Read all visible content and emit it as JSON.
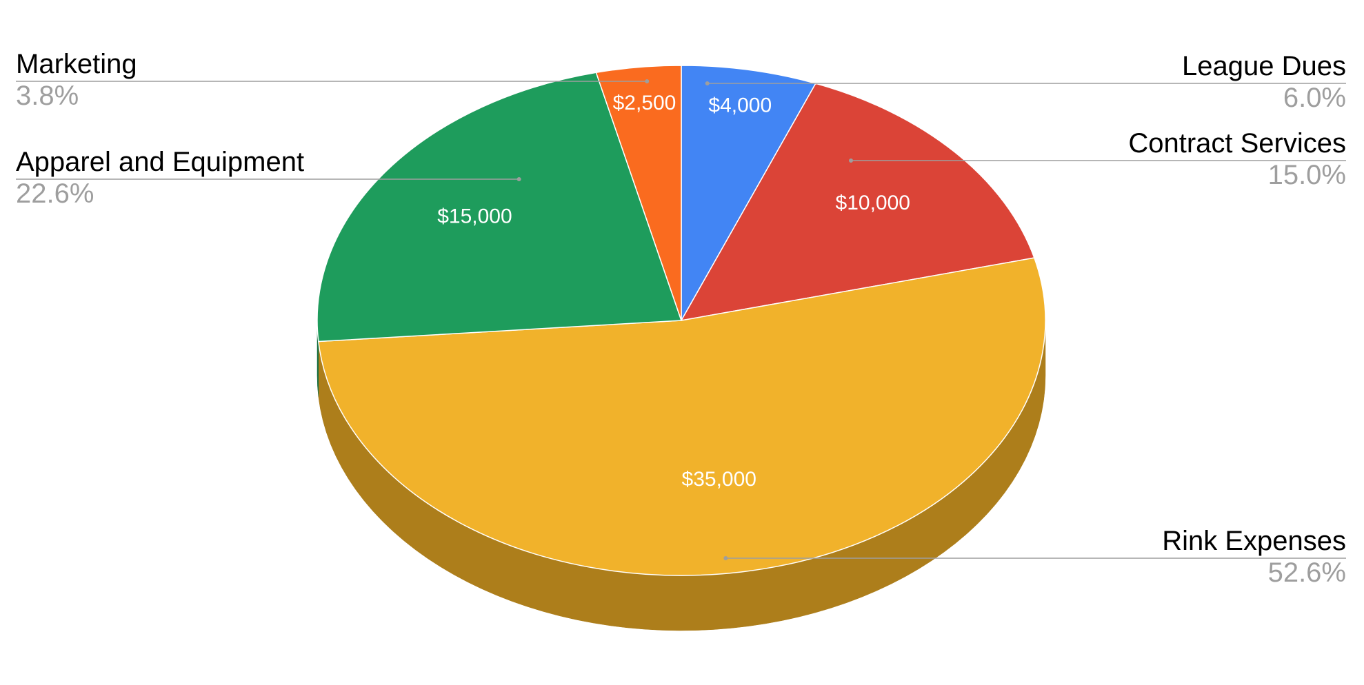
{
  "chart_data": {
    "type": "pie",
    "style": "3d",
    "currency": "$",
    "slices": [
      {
        "label": "League Dues",
        "value": 4000,
        "value_label": "$4,000",
        "percent_label": "6.0%",
        "color": "#4285f4",
        "side_color": "#2f5fae"
      },
      {
        "label": "Contract Services",
        "value": 10000,
        "value_label": "$10,000",
        "percent_label": "15.0%",
        "color": "#db4437",
        "side_color": "#9b3027"
      },
      {
        "label": "Rink Expenses",
        "value": 35000,
        "value_label": "$35,000",
        "percent_label": "52.6%",
        "color": "#f1b22b",
        "side_color": "#ad7e1b"
      },
      {
        "label": "Apparel and Equipment",
        "value": 15000,
        "value_label": "$15,000",
        "percent_label": "22.6%",
        "color": "#1e9c5c",
        "side_color": "#156e41"
      },
      {
        "label": "Marketing",
        "value": 2500,
        "value_label": "$2,500",
        "percent_label": "3.8%",
        "color": "#fa6b1f",
        "side_color": "#b04c16"
      }
    ],
    "legend": "labels-beside-slices"
  }
}
